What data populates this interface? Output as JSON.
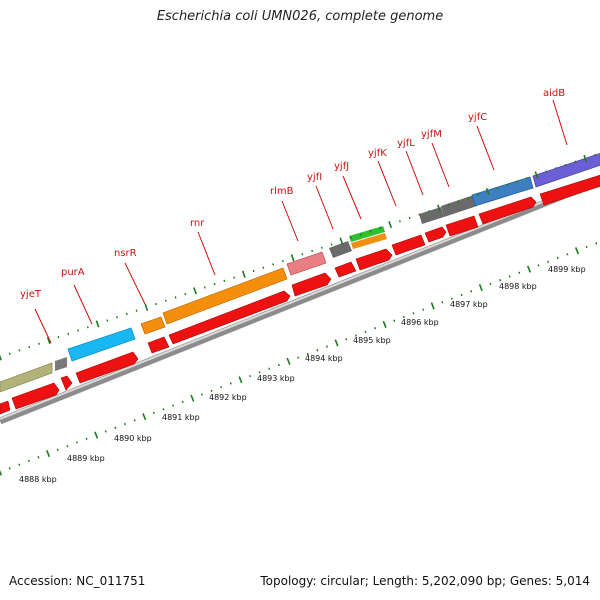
{
  "title": "Escherichia coli UMN026, complete genome",
  "footer": {
    "accession": "Accession: NC_011751",
    "summary": "Topology: circular; Length: 5,202,090 bp; Genes: 5,014"
  },
  "colors": {
    "cds": "#ee1111",
    "backbone": "#9a9a9a",
    "tick": "#1e7a1e",
    "label": "#cc1111",
    "text": "#111111"
  },
  "gene_labels": [
    "yjeT",
    "purA",
    "nsrR",
    "rnr",
    "rlmB",
    "yjfI",
    "yjfJ",
    "yjfK",
    "yjfL",
    "yjfM",
    "yjfC",
    "aidB"
  ],
  "kbp_labels": [
    "4888 kbp",
    "4889 kbp",
    "4890 kbp",
    "4891 kbp",
    "4892 kbp",
    "4893 kbp",
    "4894 kbp",
    "4895 kbp",
    "4896 kbp",
    "4897 kbp",
    "4898 kbp",
    "4899 kbp"
  ]
}
